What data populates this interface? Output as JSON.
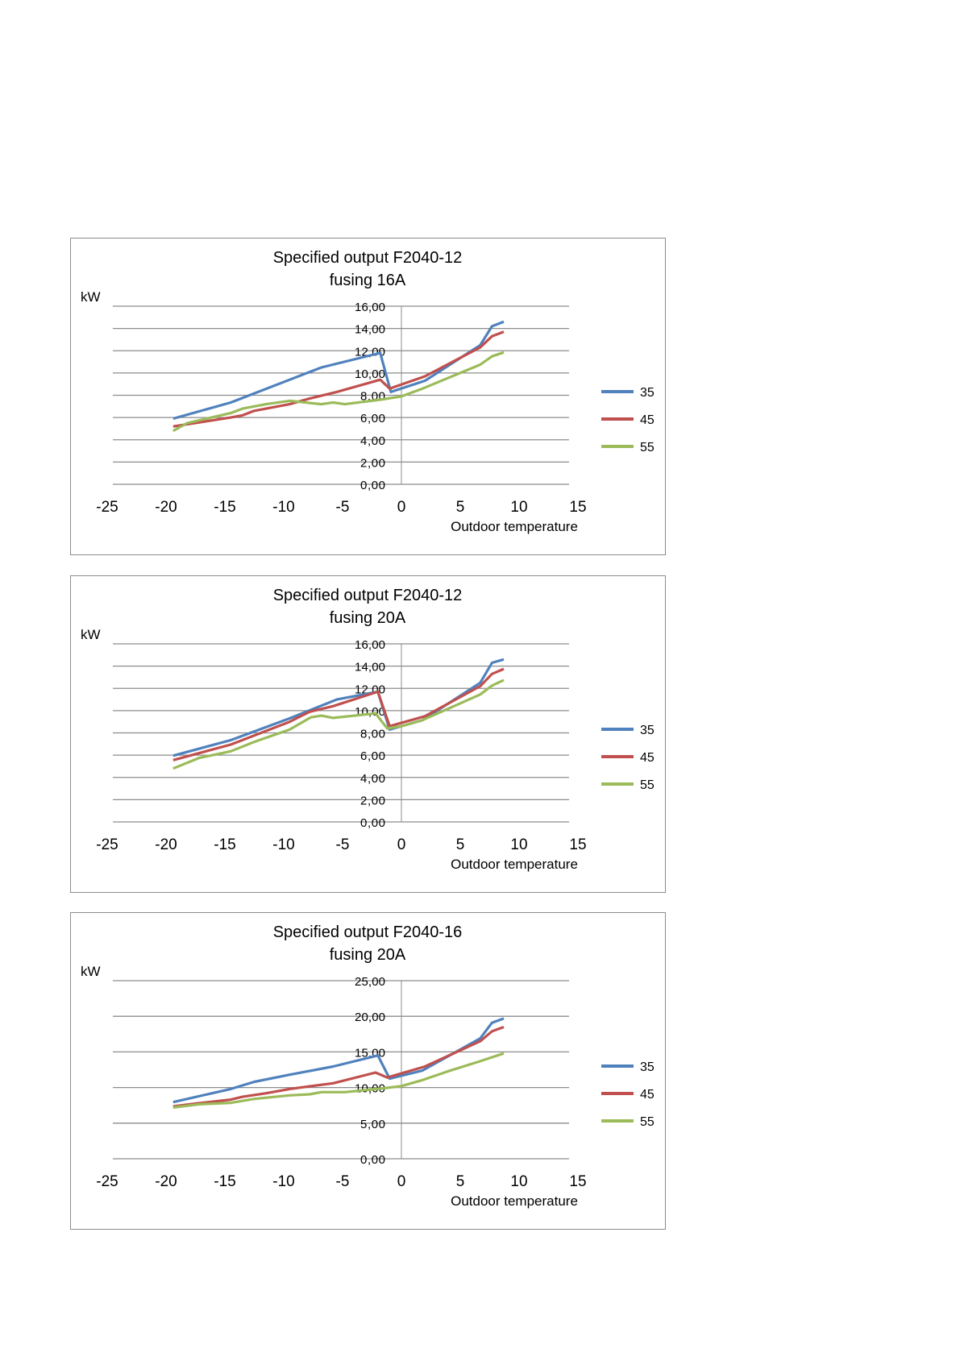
{
  "colors": {
    "35": "#4f81bd",
    "45": "#c0504d",
    "55": "#9bbb59",
    "grid": "#8c8c8c"
  },
  "chart_data": [
    {
      "type": "line",
      "title": [
        "Specified output F2040-12",
        "fusing 16A"
      ],
      "ylabel": "kW",
      "xlabel": "Outdoor temperature",
      "xlim": [
        -25,
        15
      ],
      "xticks": [
        "-25",
        "-20",
        "-15",
        "-10",
        "-5",
        "0",
        "5",
        "10",
        "15"
      ],
      "ylim": [
        0,
        16
      ],
      "yticks": [
        "0,00",
        "2,00",
        "4,00",
        "6,00",
        "8,00",
        "10,00",
        "12,00",
        "14,00",
        "16,00"
      ],
      "grid": true,
      "legend": "right",
      "series": [
        {
          "name": "35",
          "x": [
            -19.4,
            -14.5,
            -6.8,
            -1.8,
            -0.9,
            2,
            6.7,
            7.7,
            8.7
          ],
          "y": [
            5.9,
            7.35,
            10.5,
            11.8,
            8.3,
            9.3,
            12.5,
            14.2,
            14.6
          ]
        },
        {
          "name": "45",
          "x": [
            -19.4,
            -14.5,
            -13.5,
            -12.5,
            -11.5,
            -9.5,
            -7.8,
            -5.5,
            -1.8,
            -1,
            2,
            6.7,
            7.7,
            8.7
          ],
          "y": [
            5.2,
            6.0,
            6.2,
            6.6,
            6.8,
            7.2,
            7.7,
            8.3,
            9.4,
            8.6,
            9.7,
            12.3,
            13.3,
            13.7
          ]
        },
        {
          "name": "55",
          "x": [
            -19.4,
            -18.2,
            -14.5,
            -13.5,
            -11.5,
            -9.5,
            -6.8,
            -5.8,
            -4.8,
            -1.8,
            0,
            1.8,
            6.7,
            7.7,
            8.7
          ],
          "y": [
            4.8,
            5.5,
            6.4,
            6.8,
            7.2,
            7.5,
            7.2,
            7.35,
            7.2,
            7.6,
            7.9,
            8.6,
            10.75,
            11.5,
            11.85
          ]
        }
      ]
    },
    {
      "type": "line",
      "title": [
        "Specified output F2040-12",
        "fusing 20A"
      ],
      "ylabel": "kW",
      "xlabel": "Outdoor temperature",
      "xlim": [
        -25,
        15
      ],
      "xticks": [
        "-25",
        "-20",
        "-15",
        "-10",
        "-5",
        "0",
        "5",
        "10",
        "15"
      ],
      "ylim": [
        0,
        16
      ],
      "yticks": [
        "0,00",
        "2,00",
        "4,00",
        "6,00",
        "8,00",
        "10,00",
        "12,00",
        "14,00",
        "16,00"
      ],
      "grid": true,
      "legend": "right",
      "series": [
        {
          "name": "35",
          "x": [
            -19.4,
            -14.5,
            -9.5,
            -5.5,
            -2,
            -1,
            1.8,
            6.7,
            7.7,
            8.7
          ],
          "y": [
            5.95,
            7.35,
            9.3,
            11.0,
            11.7,
            8.3,
            9.15,
            12.5,
            14.3,
            14.6
          ]
        },
        {
          "name": "45",
          "x": [
            -19.4,
            -14.5,
            -9.5,
            -7.8,
            -5.8,
            -2,
            -1,
            2,
            6.7,
            7.7,
            8.7
          ],
          "y": [
            5.55,
            6.95,
            9.0,
            9.9,
            10.4,
            11.7,
            8.6,
            9.5,
            12.2,
            13.3,
            13.75
          ]
        },
        {
          "name": "55",
          "x": [
            -19.4,
            -17.2,
            -14.5,
            -12.5,
            -9.5,
            -7.7,
            -6.8,
            -5.8,
            -2.2,
            -1.2,
            0,
            1.8,
            6.7,
            7.7,
            8.7
          ],
          "y": [
            4.8,
            5.75,
            6.35,
            7.2,
            8.3,
            9.4,
            9.55,
            9.35,
            9.75,
            8.4,
            8.6,
            9.15,
            11.45,
            12.25,
            12.75
          ]
        }
      ]
    },
    {
      "type": "line",
      "title": [
        "Specified output F2040-16",
        "fusing 20A"
      ],
      "ylabel": "kW",
      "xlabel": "Outdoor temperature",
      "xlim": [
        -25,
        15
      ],
      "xticks": [
        "-25",
        "-20",
        "-15",
        "-10",
        "-5",
        "0",
        "5",
        "10",
        "15"
      ],
      "ylim": [
        0,
        25
      ],
      "yticks": [
        "0,00",
        "5,00",
        "10,00",
        "15,00",
        "20,00",
        "25,00"
      ],
      "grid": true,
      "legend": "right",
      "series": [
        {
          "name": "35",
          "x": [
            -19.4,
            -14.5,
            -12.5,
            -9.5,
            -5.8,
            -2,
            -1,
            1.8,
            6.7,
            7.7,
            8.7
          ],
          "y": [
            7.95,
            9.8,
            10.8,
            11.8,
            12.95,
            14.5,
            11.25,
            12.4,
            16.9,
            19.1,
            19.7
          ]
        },
        {
          "name": "45",
          "x": [
            -19.4,
            -17.2,
            -14.5,
            -13.5,
            -11.5,
            -9.5,
            -5.8,
            -2.2,
            -1.2,
            2,
            6.7,
            7.7,
            8.7
          ],
          "y": [
            7.35,
            7.8,
            8.3,
            8.7,
            9.2,
            9.8,
            10.6,
            12.1,
            11.4,
            12.95,
            16.5,
            17.9,
            18.5
          ]
        },
        {
          "name": "55",
          "x": [
            -19.4,
            -17.2,
            -14.5,
            -12.5,
            -9.5,
            -7.8,
            -6.8,
            -4.8,
            -1.5,
            0,
            1.8,
            3.8,
            6.7,
            8.7
          ],
          "y": [
            7.2,
            7.65,
            7.85,
            8.4,
            8.9,
            9.05,
            9.35,
            9.35,
            9.9,
            10.2,
            11.05,
            12.2,
            13.7,
            14.8
          ]
        }
      ]
    }
  ]
}
